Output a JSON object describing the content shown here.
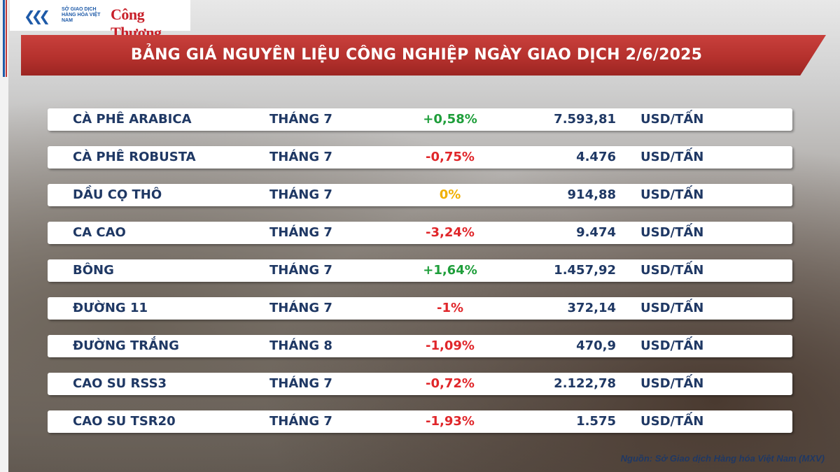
{
  "logo": {
    "mxv_text": "SỞ GIAO DỊCH HÀNG HÓA VIỆT NAM",
    "brand": "Công Thương",
    "icon": "mxv-chevron-logo-icon"
  },
  "title": "BẢNG GIÁ NGUYÊN LIỆU CÔNG NGHIỆP NGÀY GIAO DỊCH 2/6/2025",
  "colors": {
    "up": "#1e9e3a",
    "down": "#e0262a",
    "flat": "#f0b000",
    "text": "#1f3864",
    "banner": "#b3302c"
  },
  "rows": [
    {
      "name": "CÀ PHÊ ARABICA",
      "month": "THÁNG 7",
      "change": "+0,58%",
      "trend": "up",
      "price": "7.593,81",
      "unit": "USD/TẤN"
    },
    {
      "name": "CÀ PHÊ ROBUSTA",
      "month": "THÁNG 7",
      "change": "-0,75%",
      "trend": "down",
      "price": "4.476",
      "unit": "USD/TẤN"
    },
    {
      "name": "DẦU CỌ THÔ",
      "month": "THÁNG 7",
      "change": "0%",
      "trend": "flat",
      "price": "914,88",
      "unit": "USD/TẤN"
    },
    {
      "name": "CA CAO",
      "month": "THÁNG 7",
      "change": "-3,24%",
      "trend": "down",
      "price": "9.474",
      "unit": "USD/TẤN"
    },
    {
      "name": "BÔNG",
      "month": "THÁNG 7",
      "change": "+1,64%",
      "trend": "up",
      "price": "1.457,92",
      "unit": "USD/TẤN"
    },
    {
      "name": "ĐƯỜNG 11",
      "month": "THÁNG 7",
      "change": "-1%",
      "trend": "down",
      "price": "372,14",
      "unit": "USD/TẤN"
    },
    {
      "name": "ĐƯỜNG TRẮNG",
      "month": "THÁNG 8",
      "change": "-1,09%",
      "trend": "down",
      "price": "470,9",
      "unit": "USD/TẤN"
    },
    {
      "name": "CAO SU RSS3",
      "month": "THÁNG 7",
      "change": "-0,72%",
      "trend": "down",
      "price": "2.122,78",
      "unit": "USD/TẤN"
    },
    {
      "name": "CAO SU TSR20",
      "month": "THÁNG 7",
      "change": "-1,93%",
      "trend": "down",
      "price": "1.575",
      "unit": "USD/TẤN"
    }
  ],
  "source": "Nguồn: Sở Giao dịch Hàng hóa Việt Nam (MXV)"
}
